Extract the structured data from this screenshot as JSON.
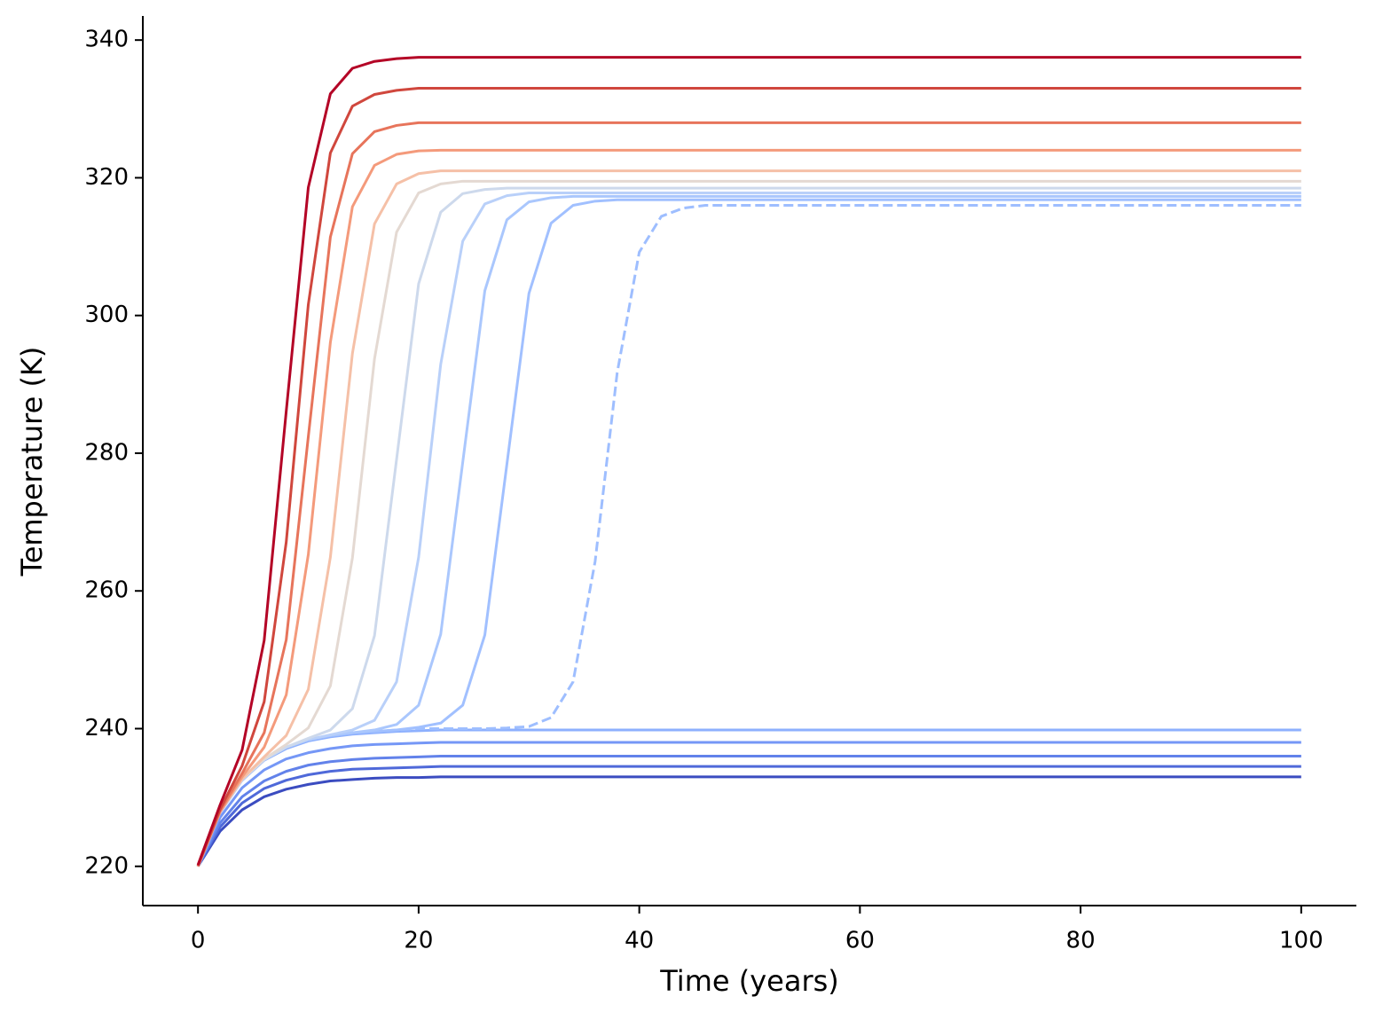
{
  "chart_data": {
    "type": "line",
    "xlabel": "Time (years)",
    "ylabel": "Temperature (K)",
    "x": [
      0,
      2,
      4,
      6,
      8,
      10,
      12,
      14,
      16,
      18,
      20,
      22,
      24,
      26,
      28,
      30,
      32,
      34,
      36,
      38,
      40,
      42,
      44,
      46,
      50,
      60,
      80,
      100
    ],
    "xlim": [
      -5,
      105
    ],
    "xticks": [
      0,
      20,
      40,
      60,
      80,
      100
    ],
    "ylim": [
      214.3,
      343.5
    ],
    "yticks": [
      220,
      240,
      260,
      280,
      300,
      320,
      340
    ],
    "grid": false,
    "series": [
      {
        "color": "#3b4cc0",
        "values": [
          220,
          225.1,
          228.2,
          230.1,
          231.2,
          231.9,
          232.4,
          232.6,
          232.8,
          232.9,
          232.9,
          233,
          233,
          233,
          233,
          233,
          233,
          233,
          233,
          233,
          233,
          233,
          233,
          233,
          233,
          233,
          233,
          233
        ]
      },
      {
        "color": "#4f69d9",
        "values": [
          220,
          225.7,
          229.2,
          231.3,
          232.5,
          233.3,
          233.8,
          234.1,
          234.2,
          234.3,
          234.4,
          234.5,
          234.5,
          234.5,
          234.5,
          234.5,
          234.5,
          234.5,
          234.5,
          234.5,
          234.5,
          234.5,
          234.5,
          234.5,
          234.5,
          234.5,
          234.5,
          234.5
        ]
      },
      {
        "color": "#6282ea",
        "values": [
          220,
          226.3,
          230.1,
          232.4,
          233.8,
          234.7,
          235.2,
          235.5,
          235.7,
          235.8,
          235.9,
          236,
          236,
          236,
          236,
          236,
          236,
          236,
          236,
          236,
          236,
          236,
          236,
          236,
          236,
          236,
          236,
          236
        ]
      },
      {
        "color": "#7597f6",
        "values": [
          220,
          227.1,
          231.4,
          234,
          235.6,
          236.5,
          237.1,
          237.5,
          237.7,
          237.8,
          237.9,
          238,
          238,
          238,
          238,
          238,
          238,
          238,
          238,
          238,
          238,
          238,
          238,
          238,
          238,
          238,
          238,
          238
        ]
      },
      {
        "color": "#8db0fe",
        "values": [
          220,
          227.8,
          232.5,
          235.4,
          237.1,
          238.2,
          238.8,
          239.2,
          239.4,
          239.6,
          239.7,
          239.8,
          239.8,
          239.8,
          239.8,
          239.8,
          239.8,
          239.8,
          239.8,
          239.8,
          239.8,
          239.8,
          239.8,
          239.8,
          239.8,
          239.8,
          239.8,
          239.8
        ]
      },
      {
        "color": "#9ebeff",
        "linestyle": "dashed",
        "values": [
          220,
          227.9,
          232.6,
          235.5,
          237.3,
          238.4,
          239,
          239.4,
          239.6,
          239.8,
          240,
          240,
          240,
          240,
          240.1,
          240.3,
          241.6,
          246.8,
          264.3,
          291.7,
          309.2,
          314.4,
          315.6,
          316,
          316,
          316,
          316,
          316
        ]
      },
      {
        "color": "#a1c0ff",
        "values": [
          220,
          227.9,
          232.6,
          235.5,
          237.3,
          238.4,
          239,
          239.4,
          239.6,
          239.8,
          240.2,
          240.8,
          243.4,
          253.6,
          278.4,
          303.2,
          313.4,
          316,
          316.6,
          316.8,
          316.8,
          316.8,
          316.8,
          316.8,
          316.8,
          316.8,
          316.8,
          316.8
        ]
      },
      {
        "color": "#aac7fd",
        "values": [
          220,
          227.9,
          232.6,
          235.5,
          237.3,
          238.4,
          239,
          239.4,
          239.8,
          240.6,
          243.4,
          253.7,
          278.7,
          303.6,
          313.9,
          316.5,
          317.1,
          317.3,
          317.3,
          317.3,
          317.3,
          317.3,
          317.3,
          317.3,
          317.3,
          317.3,
          317.3,
          317.3
        ]
      },
      {
        "color": "#b9d0f9",
        "values": [
          220,
          227.9,
          232.6,
          235.5,
          237.3,
          238.4,
          239.1,
          239.8,
          241.2,
          246.8,
          264.9,
          292.9,
          310.8,
          316.2,
          317.4,
          317.8,
          317.8,
          317.8,
          317.8,
          317.8,
          317.8,
          317.8,
          317.8,
          317.8,
          317.8,
          317.8,
          317.8,
          317.8
        ]
      },
      {
        "color": "#cdd9ec",
        "values": [
          220,
          227.9,
          232.6,
          235.5,
          237.3,
          238.6,
          239.8,
          242.9,
          253.5,
          279.1,
          304.6,
          315,
          317.7,
          318.3,
          318.5,
          318.5,
          318.5,
          318.5,
          318.5,
          318.5,
          318.5,
          318.5,
          318.5,
          318.5,
          318.5,
          318.5,
          318.5,
          318.5
        ]
      },
      {
        "color": "#e4d9d2",
        "values": [
          220,
          227.9,
          232.6,
          235.6,
          237.7,
          240.1,
          246.2,
          264.8,
          293.7,
          312.1,
          317.8,
          319.1,
          319.5,
          319.5,
          319.5,
          319.5,
          319.5,
          319.5,
          319.5,
          319.5,
          319.5,
          319.5,
          319.5,
          319.5,
          319.5,
          319.5,
          319.5,
          319.5
        ]
      },
      {
        "color": "#f5c0a7",
        "values": [
          220,
          227.9,
          232.7,
          235.9,
          239,
          245.7,
          264.9,
          294.5,
          313.3,
          319.1,
          320.6,
          321,
          321,
          321,
          321,
          321,
          321,
          321,
          321,
          321,
          321,
          321,
          321,
          321,
          321,
          321,
          321,
          321
        ]
      },
      {
        "color": "#f49a7b",
        "values": [
          220,
          227.9,
          233,
          237.3,
          244.9,
          265.3,
          296.1,
          315.8,
          321.8,
          323.4,
          323.9,
          324,
          324,
          324,
          324,
          324,
          324,
          324,
          324,
          324,
          324,
          324,
          324,
          324,
          324,
          324,
          324,
          324
        ]
      },
      {
        "color": "#e7745b",
        "values": [
          220,
          228.1,
          233.5,
          239.4,
          252.9,
          282.4,
          311.4,
          323.5,
          326.7,
          327.6,
          328,
          328,
          328,
          328,
          328,
          328,
          328,
          328,
          328,
          328,
          328,
          328,
          328,
          328,
          328,
          328,
          328,
          328
        ]
      },
      {
        "color": "#d0473d",
        "values": [
          220.1,
          228.3,
          234.6,
          243.9,
          267.1,
          301.6,
          323.6,
          330.4,
          332.1,
          332.7,
          333,
          333,
          333,
          333,
          333,
          333,
          333,
          333,
          333,
          333,
          333,
          333,
          333,
          333,
          333,
          333,
          333,
          333
        ]
      },
      {
        "color": "#b40426",
        "values": [
          220.2,
          228.9,
          236.9,
          252.8,
          286.1,
          318.6,
          332.2,
          335.9,
          336.9,
          337.3,
          337.5,
          337.5,
          337.5,
          337.5,
          337.5,
          337.5,
          337.5,
          337.5,
          337.5,
          337.5,
          337.5,
          337.5,
          337.5,
          337.5,
          337.5,
          337.5,
          337.5,
          337.5
        ]
      }
    ]
  }
}
